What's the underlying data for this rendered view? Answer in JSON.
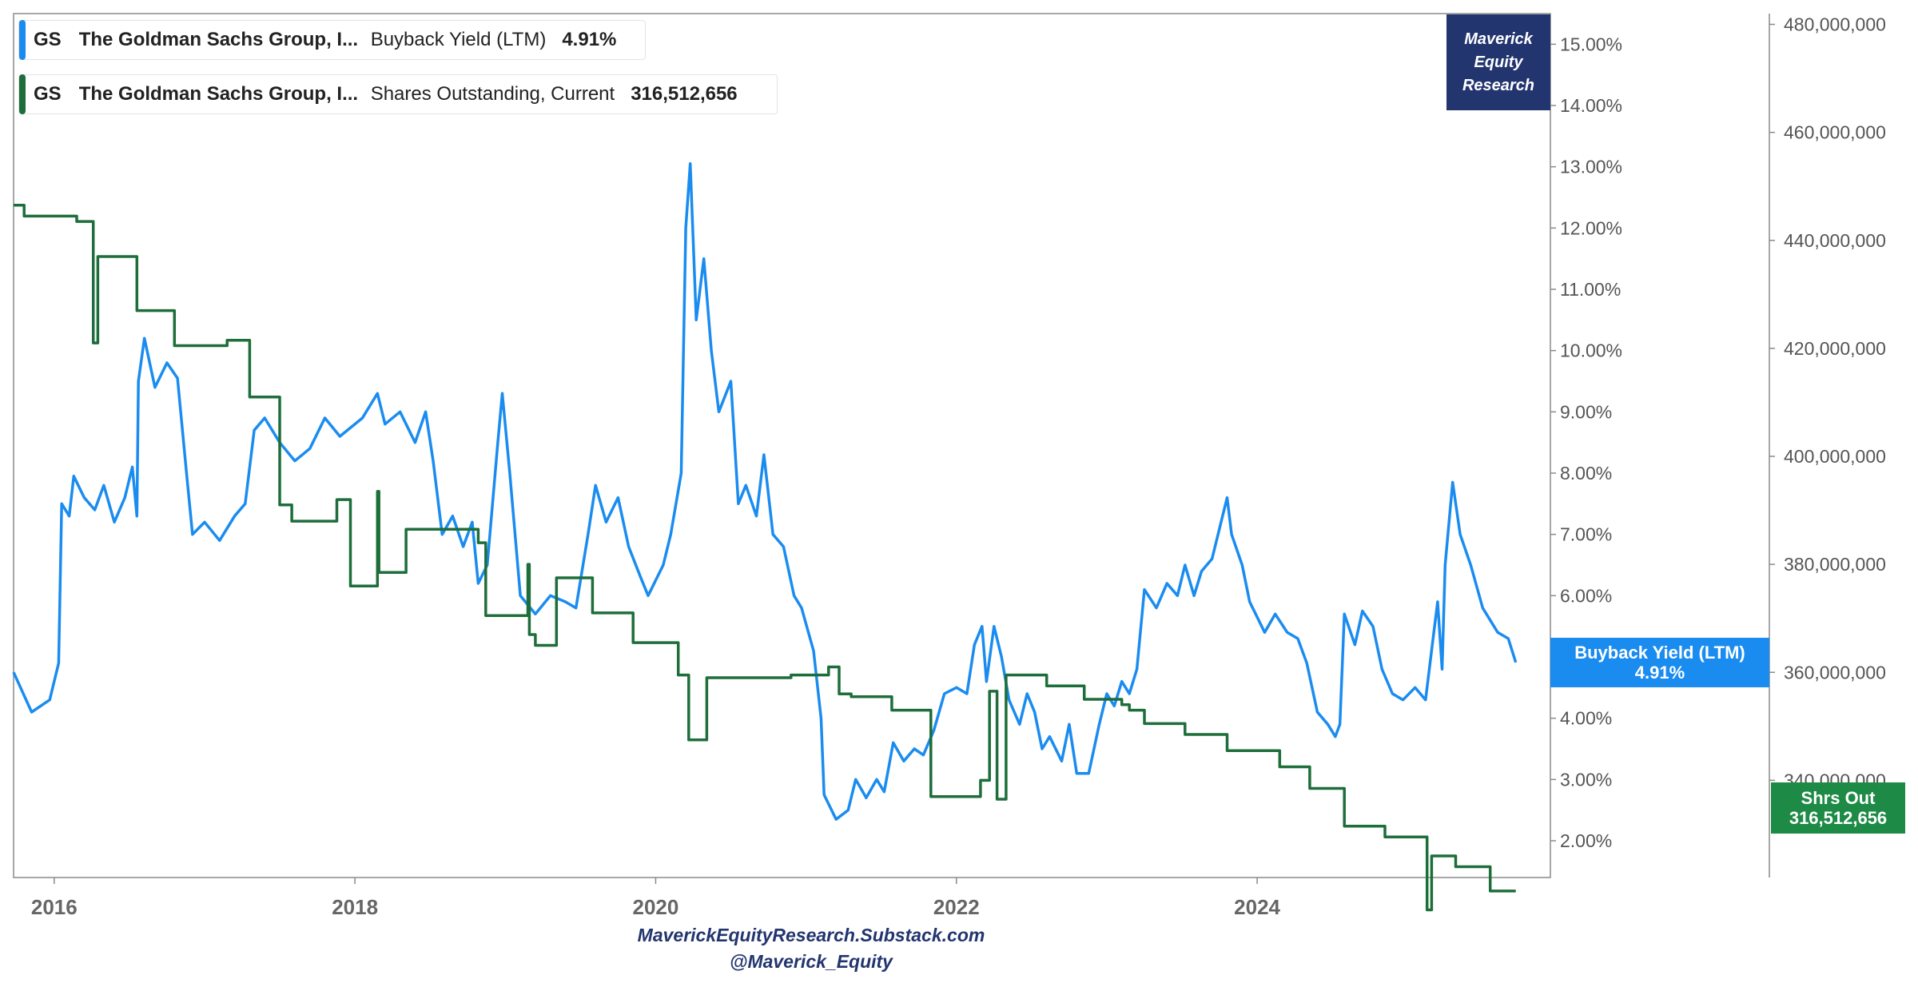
{
  "legend": [
    {
      "ticker": "GS",
      "company": "The Goldman Sachs Group, I...",
      "metric": "Buyback Yield (LTM)",
      "value": "4.91%",
      "color": "#1a8cf0"
    },
    {
      "ticker": "GS",
      "company": "The Goldman Sachs Group, I...",
      "metric": "Shares Outstanding, Current",
      "value": "316,512,656",
      "color": "#1d6e3a"
    }
  ],
  "badge": {
    "line1": "Maverick",
    "line2": "Equity",
    "line3": "Research"
  },
  "footer": {
    "line1": "MaverickEquityResearch.Substack.com",
    "line2": "@Maverick_Equity"
  },
  "flags": {
    "yield": {
      "line1": "Buyback Yield (LTM)",
      "line2": "4.91%"
    },
    "shares": {
      "line1": "Shrs Out",
      "line2": "316,512,656"
    }
  },
  "chart_data": {
    "type": "line",
    "x_ticks": [
      2016,
      2018,
      2020,
      2022,
      2024
    ],
    "x_range": [
      2015.73,
      2025.95
    ],
    "left_axis": {
      "label": "Buyback Yield (LTM)",
      "unit": "%",
      "range": [
        1.4,
        15.5
      ],
      "ticks": [
        "2.00%",
        "3.00%",
        "4.00%",
        "5.00%",
        "6.00%",
        "7.00%",
        "8.00%",
        "9.00%",
        "10.00%",
        "11.00%",
        "12.00%",
        "13.00%",
        "14.00%",
        "15.00%"
      ]
    },
    "right_axis": {
      "label": "Shares Outstanding",
      "range": [
        322000000,
        482000000
      ],
      "ticks": [
        "340,000,000",
        "360,000,000",
        "380,000,000",
        "400,000,000",
        "420,000,000",
        "440,000,000",
        "460,000,000",
        "480,000,000"
      ]
    },
    "series": [
      {
        "name": "Buyback Yield (LTM)",
        "color": "#1a8cf0",
        "axis": "left",
        "points": [
          [
            2015.73,
            4.75
          ],
          [
            2015.85,
            4.1
          ],
          [
            2015.97,
            4.3
          ],
          [
            2016.03,
            4.9
          ],
          [
            2016.05,
            7.5
          ],
          [
            2016.1,
            7.3
          ],
          [
            2016.13,
            7.95
          ],
          [
            2016.2,
            7.6
          ],
          [
            2016.27,
            7.4
          ],
          [
            2016.33,
            7.8
          ],
          [
            2016.4,
            7.2
          ],
          [
            2016.47,
            7.6
          ],
          [
            2016.52,
            8.1
          ],
          [
            2016.55,
            7.3
          ],
          [
            2016.56,
            9.5
          ],
          [
            2016.6,
            10.2
          ],
          [
            2016.67,
            9.4
          ],
          [
            2016.75,
            9.8
          ],
          [
            2016.82,
            9.55
          ],
          [
            2016.88,
            8.0
          ],
          [
            2016.92,
            7.0
          ],
          [
            2017.0,
            7.2
          ],
          [
            2017.1,
            6.9
          ],
          [
            2017.2,
            7.3
          ],
          [
            2017.27,
            7.5
          ],
          [
            2017.33,
            8.7
          ],
          [
            2017.4,
            8.9
          ],
          [
            2017.5,
            8.5
          ],
          [
            2017.6,
            8.2
          ],
          [
            2017.7,
            8.4
          ],
          [
            2017.8,
            8.9
          ],
          [
            2017.9,
            8.6
          ],
          [
            2018.05,
            8.9
          ],
          [
            2018.15,
            9.3
          ],
          [
            2018.2,
            8.8
          ],
          [
            2018.3,
            9.0
          ],
          [
            2018.4,
            8.5
          ],
          [
            2018.47,
            9.0
          ],
          [
            2018.52,
            8.2
          ],
          [
            2018.58,
            7.0
          ],
          [
            2018.65,
            7.3
          ],
          [
            2018.72,
            6.8
          ],
          [
            2018.78,
            7.2
          ],
          [
            2018.82,
            6.2
          ],
          [
            2018.88,
            6.5
          ],
          [
            2018.95,
            8.5
          ],
          [
            2018.98,
            9.3
          ],
          [
            2019.03,
            8.0
          ],
          [
            2019.1,
            6.0
          ],
          [
            2019.2,
            5.7
          ],
          [
            2019.3,
            6.0
          ],
          [
            2019.4,
            5.9
          ],
          [
            2019.47,
            5.8
          ],
          [
            2019.55,
            7.0
          ],
          [
            2019.6,
            7.8
          ],
          [
            2019.67,
            7.2
          ],
          [
            2019.75,
            7.6
          ],
          [
            2019.82,
            6.8
          ],
          [
            2019.9,
            6.3
          ],
          [
            2019.95,
            6.0
          ],
          [
            2020.05,
            6.5
          ],
          [
            2020.1,
            7.0
          ],
          [
            2020.17,
            8.0
          ],
          [
            2020.2,
            12.0
          ],
          [
            2020.23,
            13.05
          ],
          [
            2020.27,
            10.5
          ],
          [
            2020.32,
            11.5
          ],
          [
            2020.37,
            10.0
          ],
          [
            2020.42,
            9.0
          ],
          [
            2020.5,
            9.5
          ],
          [
            2020.55,
            7.5
          ],
          [
            2020.6,
            7.8
          ],
          [
            2020.67,
            7.3
          ],
          [
            2020.72,
            8.3
          ],
          [
            2020.78,
            7.0
          ],
          [
            2020.85,
            6.8
          ],
          [
            2020.92,
            6.0
          ],
          [
            2020.97,
            5.8
          ],
          [
            2021.05,
            5.1
          ],
          [
            2021.1,
            4.0
          ],
          [
            2021.12,
            2.75
          ],
          [
            2021.2,
            2.35
          ],
          [
            2021.28,
            2.5
          ],
          [
            2021.33,
            3.0
          ],
          [
            2021.4,
            2.7
          ],
          [
            2021.47,
            3.0
          ],
          [
            2021.52,
            2.8
          ],
          [
            2021.58,
            3.6
          ],
          [
            2021.65,
            3.3
          ],
          [
            2021.72,
            3.5
          ],
          [
            2021.78,
            3.4
          ],
          [
            2021.85,
            3.8
          ],
          [
            2021.92,
            4.4
          ],
          [
            2022.0,
            4.5
          ],
          [
            2022.07,
            4.4
          ],
          [
            2022.12,
            5.2
          ],
          [
            2022.17,
            5.5
          ],
          [
            2022.2,
            4.6
          ],
          [
            2022.25,
            5.5
          ],
          [
            2022.3,
            5.0
          ],
          [
            2022.35,
            4.3
          ],
          [
            2022.42,
            3.9
          ],
          [
            2022.47,
            4.4
          ],
          [
            2022.52,
            4.1
          ],
          [
            2022.57,
            3.5
          ],
          [
            2022.62,
            3.7
          ],
          [
            2022.7,
            3.3
          ],
          [
            2022.75,
            3.9
          ],
          [
            2022.8,
            3.1
          ],
          [
            2022.88,
            3.1
          ],
          [
            2022.95,
            3.9
          ],
          [
            2023.0,
            4.4
          ],
          [
            2023.05,
            4.2
          ],
          [
            2023.1,
            4.6
          ],
          [
            2023.15,
            4.4
          ],
          [
            2023.2,
            4.8
          ],
          [
            2023.25,
            6.1
          ],
          [
            2023.33,
            5.8
          ],
          [
            2023.4,
            6.2
          ],
          [
            2023.47,
            6.0
          ],
          [
            2023.52,
            6.5
          ],
          [
            2023.58,
            6.0
          ],
          [
            2023.63,
            6.4
          ],
          [
            2023.7,
            6.6
          ],
          [
            2023.77,
            7.3
          ],
          [
            2023.8,
            7.6
          ],
          [
            2023.83,
            7.0
          ],
          [
            2023.9,
            6.5
          ],
          [
            2023.95,
            5.9
          ],
          [
            2024.05,
            5.4
          ],
          [
            2024.12,
            5.7
          ],
          [
            2024.2,
            5.4
          ],
          [
            2024.27,
            5.3
          ],
          [
            2024.33,
            4.9
          ],
          [
            2024.4,
            4.1
          ],
          [
            2024.47,
            3.9
          ],
          [
            2024.52,
            3.7
          ],
          [
            2024.55,
            3.9
          ],
          [
            2024.58,
            5.7
          ],
          [
            2024.65,
            5.2
          ],
          [
            2024.7,
            5.75
          ],
          [
            2024.77,
            5.5
          ],
          [
            2024.83,
            4.8
          ],
          [
            2024.9,
            4.4
          ],
          [
            2024.97,
            4.3
          ],
          [
            2025.05,
            4.5
          ],
          [
            2025.12,
            4.3
          ],
          [
            2025.17,
            5.3
          ],
          [
            2025.2,
            5.9
          ],
          [
            2025.23,
            4.8
          ],
          [
            2025.25,
            6.5
          ],
          [
            2025.3,
            7.85
          ],
          [
            2025.35,
            7.0
          ],
          [
            2025.42,
            6.5
          ],
          [
            2025.5,
            5.8
          ],
          [
            2025.6,
            5.4
          ],
          [
            2025.67,
            5.3
          ],
          [
            2025.72,
            4.91
          ]
        ]
      },
      {
        "name": "Shares Outstanding, Current",
        "color": "#1d6e3a",
        "axis": "right",
        "points": [
          [
            2015.73,
            446500000
          ],
          [
            2015.8,
            446500000
          ],
          [
            2015.8,
            444500000
          ],
          [
            2016.15,
            444500000
          ],
          [
            2016.15,
            443500000
          ],
          [
            2016.26,
            443500000
          ],
          [
            2016.26,
            421000000
          ],
          [
            2016.29,
            421000000
          ],
          [
            2016.29,
            437000000
          ],
          [
            2016.55,
            437000000
          ],
          [
            2016.55,
            427000000
          ],
          [
            2016.8,
            427000000
          ],
          [
            2016.8,
            420500000
          ],
          [
            2017.15,
            420500000
          ],
          [
            2017.15,
            421500000
          ],
          [
            2017.3,
            421500000
          ],
          [
            2017.3,
            411000000
          ],
          [
            2017.5,
            411000000
          ],
          [
            2017.5,
            391000000
          ],
          [
            2017.58,
            391000000
          ],
          [
            2017.58,
            388000000
          ],
          [
            2017.88,
            388000000
          ],
          [
            2017.88,
            392000000
          ],
          [
            2017.97,
            392000000
          ],
          [
            2017.97,
            376000000
          ],
          [
            2018.15,
            376000000
          ],
          [
            2018.15,
            393500000
          ],
          [
            2018.16,
            393500000
          ],
          [
            2018.16,
            378500000
          ],
          [
            2018.34,
            378500000
          ],
          [
            2018.34,
            386500000
          ],
          [
            2018.82,
            386500000
          ],
          [
            2018.82,
            384000000
          ],
          [
            2018.87,
            384000000
          ],
          [
            2018.87,
            370500000
          ],
          [
            2019.15,
            370500000
          ],
          [
            2019.15,
            380000000
          ],
          [
            2019.16,
            380000000
          ],
          [
            2019.16,
            367000000
          ],
          [
            2019.2,
            367000000
          ],
          [
            2019.2,
            365000000
          ],
          [
            2019.34,
            365000000
          ],
          [
            2019.34,
            377500000
          ],
          [
            2019.58,
            377500000
          ],
          [
            2019.58,
            371000000
          ],
          [
            2019.85,
            371000000
          ],
          [
            2019.85,
            365500000
          ],
          [
            2020.15,
            365500000
          ],
          [
            2020.15,
            359500000
          ],
          [
            2020.22,
            359500000
          ],
          [
            2020.22,
            347500000
          ],
          [
            2020.34,
            347500000
          ],
          [
            2020.34,
            359000000
          ],
          [
            2020.9,
            359000000
          ],
          [
            2020.9,
            359500000
          ],
          [
            2021.15,
            359500000
          ],
          [
            2021.15,
            361000000
          ],
          [
            2021.22,
            361000000
          ],
          [
            2021.22,
            356000000
          ],
          [
            2021.3,
            356000000
          ],
          [
            2021.3,
            355500000
          ],
          [
            2021.57,
            355500000
          ],
          [
            2021.57,
            353000000
          ],
          [
            2021.83,
            353000000
          ],
          [
            2021.83,
            337000000
          ],
          [
            2022.16,
            337000000
          ],
          [
            2022.16,
            340000000
          ],
          [
            2022.22,
            340000000
          ],
          [
            2022.22,
            356500000
          ],
          [
            2022.27,
            356500000
          ],
          [
            2022.27,
            336500000
          ],
          [
            2022.33,
            336500000
          ],
          [
            2022.33,
            359500000
          ],
          [
            2022.6,
            359500000
          ],
          [
            2022.6,
            357500000
          ],
          [
            2022.85,
            357500000
          ],
          [
            2022.85,
            355000000
          ],
          [
            2023.1,
            355000000
          ],
          [
            2023.1,
            354000000
          ],
          [
            2023.15,
            354000000
          ],
          [
            2023.15,
            353000000
          ],
          [
            2023.25,
            353000000
          ],
          [
            2023.25,
            350500000
          ],
          [
            2023.52,
            350500000
          ],
          [
            2023.52,
            348500000
          ],
          [
            2023.8,
            348500000
          ],
          [
            2023.8,
            345500000
          ],
          [
            2024.15,
            345500000
          ],
          [
            2024.15,
            342500000
          ],
          [
            2024.35,
            342500000
          ],
          [
            2024.35,
            338500000
          ],
          [
            2024.58,
            338500000
          ],
          [
            2024.58,
            331500000
          ],
          [
            2024.85,
            331500000
          ],
          [
            2024.85,
            329500000
          ],
          [
            2025.13,
            329500000
          ],
          [
            2025.13,
            316000000
          ],
          [
            2025.16,
            316000000
          ],
          [
            2025.16,
            326000000
          ],
          [
            2025.32,
            326000000
          ],
          [
            2025.32,
            324000000
          ],
          [
            2025.55,
            324000000
          ],
          [
            2025.55,
            319500000
          ],
          [
            2025.72,
            319500000
          ]
        ]
      }
    ]
  }
}
